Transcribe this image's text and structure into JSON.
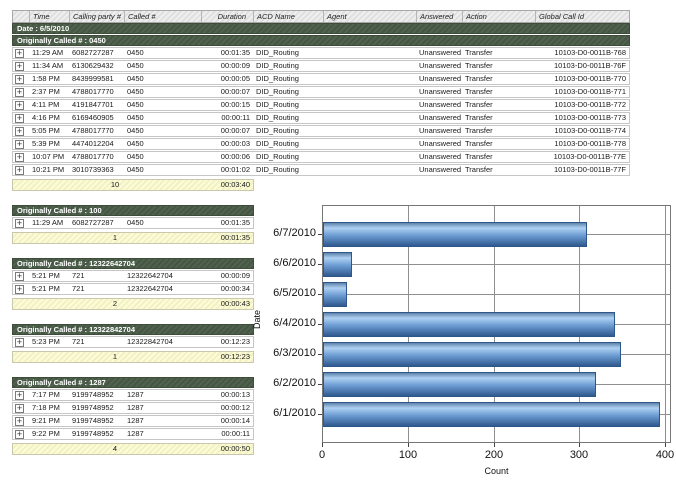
{
  "report": {
    "expand_glyph": "+",
    "date_band": "Date : 6/5/2010",
    "columns": [
      "Time",
      "Calling party #",
      "Called #",
      "Duration",
      "ACD Name",
      "Agent",
      "Answered",
      "Action",
      "Global Call Id"
    ],
    "groups": [
      {
        "header": "Originally Called # : 0450",
        "full_width": true,
        "rows": [
          {
            "time": "11:29 AM",
            "calling": "6082727287",
            "called": "0450",
            "duration": "00:01:35",
            "acd": "DID_Routing",
            "agent": "",
            "answered": "Unanswered",
            "action": "Transfer",
            "gcid": "10103-D0-0011B-768"
          },
          {
            "time": "11:34 AM",
            "calling": "6130629432",
            "called": "0450",
            "duration": "00:00:09",
            "acd": "DID_Routing",
            "agent": "",
            "answered": "Unanswered",
            "action": "Transfer",
            "gcid": "10103-D0-0011B-76F"
          },
          {
            "time": "1:58 PM",
            "calling": "8439999581",
            "called": "0450",
            "duration": "00:00:05",
            "acd": "DID_Routing",
            "agent": "",
            "answered": "Unanswered",
            "action": "Transfer",
            "gcid": "10103-D0-0011B-770"
          },
          {
            "time": "2:37 PM",
            "calling": "4788017770",
            "called": "0450",
            "duration": "00:00:07",
            "acd": "DID_Routing",
            "agent": "",
            "answered": "Unanswered",
            "action": "Transfer",
            "gcid": "10103-D0-0011B-771"
          },
          {
            "time": "4:11 PM",
            "calling": "4191847701",
            "called": "0450",
            "duration": "00:00:15",
            "acd": "DID_Routing",
            "agent": "",
            "answered": "Unanswered",
            "action": "Transfer",
            "gcid": "10103-D0-0011B-772"
          },
          {
            "time": "4:16 PM",
            "calling": "6169460905",
            "called": "0450",
            "duration": "00:00:11",
            "acd": "DID_Routing",
            "agent": "",
            "answered": "Unanswered",
            "action": "Transfer",
            "gcid": "10103-D0-0011B-773"
          },
          {
            "time": "5:05 PM",
            "calling": "4788017770",
            "called": "0450",
            "duration": "00:00:07",
            "acd": "DID_Routing",
            "agent": "",
            "answered": "Unanswered",
            "action": "Transfer",
            "gcid": "10103-D0-0011B-774"
          },
          {
            "time": "5:39 PM",
            "calling": "4474012204",
            "called": "0450",
            "duration": "00:00:03",
            "acd": "DID_Routing",
            "agent": "",
            "answered": "Unanswered",
            "action": "Transfer",
            "gcid": "10103-D0-0011B-778"
          },
          {
            "time": "10:07 PM",
            "calling": "4788017770",
            "called": "0450",
            "duration": "00:00:06",
            "acd": "DID_Routing",
            "agent": "",
            "answered": "Unanswered",
            "action": "Transfer",
            "gcid": "10103-D0-0011B-77E"
          },
          {
            "time": "10:21 PM",
            "calling": "3010739363",
            "called": "0450",
            "duration": "00:01:02",
            "acd": "DID_Routing",
            "agent": "",
            "answered": "Unanswered",
            "action": "Transfer",
            "gcid": "10103-D0-0011B-77F"
          }
        ],
        "summary": {
          "count": "10",
          "total_duration": "00:03:40"
        }
      },
      {
        "header": "Originally Called # : 100",
        "full_width": false,
        "rows": [
          {
            "time": "11:29 AM",
            "calling": "6082727287",
            "called": "0450",
            "duration": "00:01:35"
          }
        ],
        "summary": {
          "count": "1",
          "total_duration": "00:01:35"
        }
      },
      {
        "header": "Originally Called # : 12322642704",
        "full_width": false,
        "rows": [
          {
            "time": "5:21 PM",
            "calling": "721",
            "called": "12322642704",
            "duration": "00:00:09"
          },
          {
            "time": "5:21 PM",
            "calling": "721",
            "called": "12322642704",
            "duration": "00:00:34"
          }
        ],
        "summary": {
          "count": "2",
          "total_duration": "00:00:43"
        }
      },
      {
        "header": "Originally Called # : 12322842704",
        "full_width": false,
        "rows": [
          {
            "time": "5:23 PM",
            "calling": "721",
            "called": "12322842704",
            "duration": "00:12:23"
          }
        ],
        "summary": {
          "count": "1",
          "total_duration": "00:12:23"
        }
      },
      {
        "header": "Originally Called # : 1287",
        "full_width": false,
        "rows": [
          {
            "time": "7:17 PM",
            "calling": "9199748952",
            "called": "1287",
            "duration": "00:00:13"
          },
          {
            "time": "7:18 PM",
            "calling": "9199748952",
            "called": "1287",
            "duration": "00:00:12"
          },
          {
            "time": "9:21 PM",
            "calling": "9199748952",
            "called": "1287",
            "duration": "00:00:14"
          },
          {
            "time": "9:22 PM",
            "calling": "9199748952",
            "called": "1287",
            "duration": "00:00:11"
          }
        ],
        "summary": {
          "count": "4",
          "total_duration": "00:00:50"
        }
      }
    ]
  },
  "chart_data": {
    "type": "bar",
    "orientation": "horizontal",
    "categories": [
      "6/7/2010",
      "6/6/2010",
      "6/5/2010",
      "6/4/2010",
      "6/3/2010",
      "6/2/2010",
      "6/1/2010"
    ],
    "values": [
      308,
      34,
      28,
      340,
      348,
      318,
      393
    ],
    "xlabel": "Count",
    "ylabel": "Date",
    "xlim": [
      0,
      400
    ],
    "xticks": [
      "0",
      "100",
      "200",
      "300",
      "400"
    ],
    "grid": true,
    "legend": false
  },
  "colors": {
    "group_band": "#506250",
    "group_band_dark": "#455642",
    "summary_bg": "#fdfcda",
    "summary_bg_dark": "#f2f1c2",
    "bar_top_edge": "#5f83ab",
    "bar_highlight": "#aed0f2",
    "bar_mid": "#6b9bd2",
    "bar_dark": "#30598e",
    "grid_line": "#8f8f8f"
  }
}
